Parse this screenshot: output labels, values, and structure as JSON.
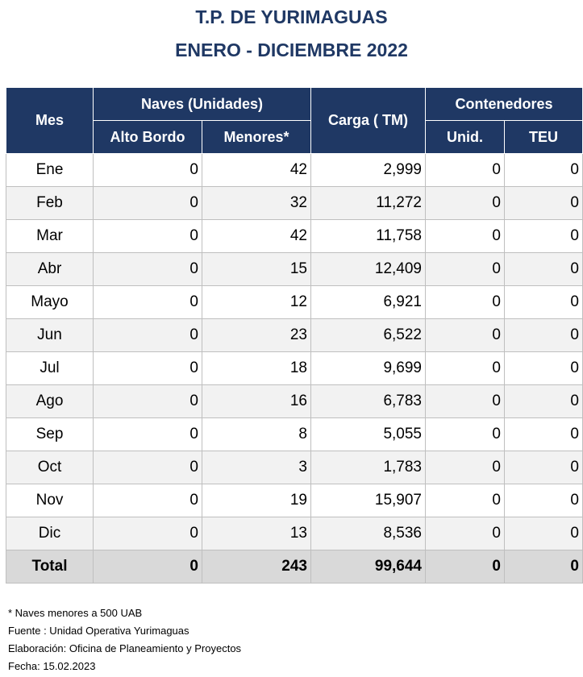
{
  "title_line1": "T.P. DE YURIMAGUAS",
  "title_line2": "ENERO - DICIEMBRE 2022",
  "headers": {
    "mes": "Mes",
    "naves": "Naves (Unidades)",
    "alto_bordo": "Alto Bordo",
    "menores": "Menores*",
    "carga": "Carga ( TM)",
    "contenedores": "Contenedores",
    "unid": "Unid.",
    "teu": "TEU"
  },
  "rows": [
    {
      "mes": "Ene",
      "alto_bordo": "0",
      "menores": "42",
      "carga": "2,999",
      "unid": "0",
      "teu": "0"
    },
    {
      "mes": "Feb",
      "alto_bordo": "0",
      "menores": "32",
      "carga": "11,272",
      "unid": "0",
      "teu": "0"
    },
    {
      "mes": "Mar",
      "alto_bordo": "0",
      "menores": "42",
      "carga": "11,758",
      "unid": "0",
      "teu": "0"
    },
    {
      "mes": "Abr",
      "alto_bordo": "0",
      "menores": "15",
      "carga": "12,409",
      "unid": "0",
      "teu": "0"
    },
    {
      "mes": "Mayo",
      "alto_bordo": "0",
      "menores": "12",
      "carga": "6,921",
      "unid": "0",
      "teu": "0"
    },
    {
      "mes": "Jun",
      "alto_bordo": "0",
      "menores": "23",
      "carga": "6,522",
      "unid": "0",
      "teu": "0"
    },
    {
      "mes": "Jul",
      "alto_bordo": "0",
      "menores": "18",
      "carga": "9,699",
      "unid": "0",
      "teu": "0"
    },
    {
      "mes": "Ago",
      "alto_bordo": "0",
      "menores": "16",
      "carga": "6,783",
      "unid": "0",
      "teu": "0"
    },
    {
      "mes": "Sep",
      "alto_bordo": "0",
      "menores": "8",
      "carga": "5,055",
      "unid": "0",
      "teu": "0"
    },
    {
      "mes": "Oct",
      "alto_bordo": "0",
      "menores": "3",
      "carga": "1,783",
      "unid": "0",
      "teu": "0"
    },
    {
      "mes": "Nov",
      "alto_bordo": "0",
      "menores": "19",
      "carga": "15,907",
      "unid": "0",
      "teu": "0"
    },
    {
      "mes": "Dic",
      "alto_bordo": "0",
      "menores": "13",
      "carga": "8,536",
      "unid": "0",
      "teu": "0"
    }
  ],
  "total": {
    "mes": "Total",
    "alto_bordo": "0",
    "menores": "243",
    "carga": "99,644",
    "unid": "0",
    "teu": "0"
  },
  "notes": {
    "footnote": "* Naves menores a 500 UAB",
    "fuente": "Fuente : Unidad Operativa Yurimaguas",
    "elaboracion": "Elaboración: Oficina de Planeamiento y Proyectos",
    "fecha": "Fecha: 15.02.2023"
  },
  "colors": {
    "header_bg": "#1f3864",
    "title": "#1f3864",
    "zebra": "#f2f2f2",
    "total_bg": "#d9d9d9"
  }
}
